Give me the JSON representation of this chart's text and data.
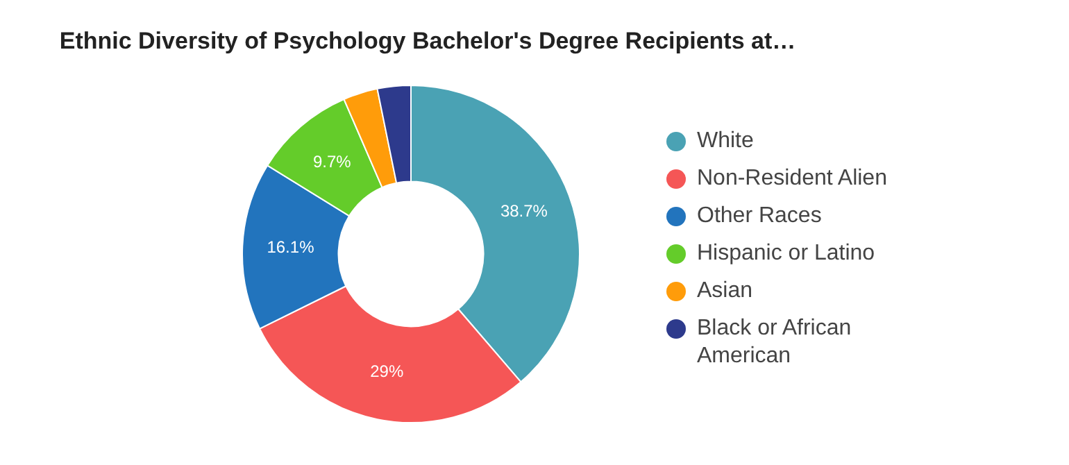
{
  "chart_data": {
    "type": "donut",
    "title": "Ethnic Diversity of Psychology Bachelor's Degree Recipients at…",
    "categories": [
      "White",
      "Non-Resident Alien",
      "Other Races",
      "Hispanic or Latino",
      "Asian",
      "Black or African American"
    ],
    "values": [
      38.7,
      29,
      16.1,
      9.7,
      3.3,
      3.2
    ],
    "colors": [
      "#4aa2b4",
      "#f55656",
      "#2274bd",
      "#64cc2a",
      "#ff9c0a",
      "#2d3a8c"
    ],
    "value_labels": [
      "38.7%",
      "29%",
      "16.1%",
      "9.7%",
      null,
      null
    ],
    "legend": "right"
  }
}
